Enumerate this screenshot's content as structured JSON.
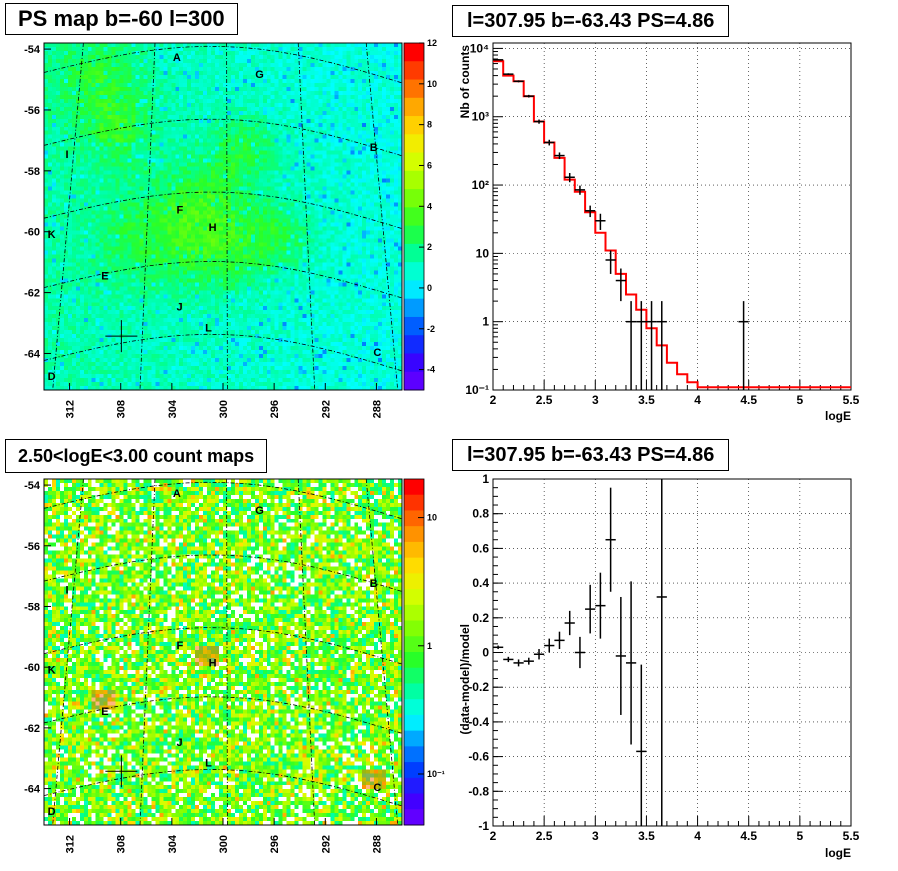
{
  "panels": {
    "ps_map": {
      "title": "PS map b=-60 l=300",
      "y_ticks": [
        "-54",
        "-56",
        "-58",
        "-60",
        "-62",
        "-64"
      ],
      "x_ticks": [
        "312",
        "308",
        "304",
        "300",
        "296",
        "292",
        "288"
      ],
      "colorbar_ticks": [
        "12",
        "10",
        "8",
        "6",
        "4",
        "2",
        "0",
        "-2",
        "-4"
      ],
      "labels": [
        "A",
        "G",
        "B",
        "I",
        "F",
        "H",
        "K",
        "E",
        "J",
        "L",
        "C",
        "D"
      ]
    },
    "count_map": {
      "title": "2.50<logE<3.00 count maps",
      "y_ticks": [
        "-54",
        "-56",
        "-58",
        "-60",
        "-62",
        "-64"
      ],
      "x_ticks": [
        "312",
        "308",
        "304",
        "300",
        "296",
        "292",
        "288"
      ],
      "colorbar_ticks": [
        "10",
        "1",
        "10⁻¹"
      ],
      "labels": [
        "A",
        "G",
        "B",
        "I",
        "F",
        "H",
        "K",
        "E",
        "J",
        "L",
        "C",
        "D"
      ]
    },
    "spectrum": {
      "title": "l=307.95 b=-63.43 PS=4.86",
      "ylabel": "Nb of counts",
      "xlabel": "logE",
      "x_ticks": [
        "2",
        "2.5",
        "3",
        "3.5",
        "4",
        "4.5",
        "5",
        "5.5"
      ],
      "y_ticks": [
        "10⁻¹",
        "1",
        "10",
        "10²",
        "10³",
        "10⁴"
      ]
    },
    "residual": {
      "title": "l=307.95 b=-63.43 PS=4.86",
      "ylabel": "(data-model)/model",
      "xlabel": "logE",
      "x_ticks": [
        "2",
        "2.5",
        "3",
        "3.5",
        "4",
        "4.5",
        "5",
        "5.5"
      ],
      "y_ticks": [
        "1",
        "0.8",
        "0.6",
        "0.4",
        "0.2",
        "0",
        "-0.2",
        "-0.4",
        "-0.6",
        "-0.8",
        "-1"
      ]
    }
  },
  "colors": {
    "model_line": "#ff0000",
    "data": "#000000",
    "map_bg": "#00ffff"
  },
  "chart_data": [
    {
      "type": "heatmap",
      "title": "PS map b=-60 l=300",
      "xlabel": "",
      "ylabel": "",
      "xlim": [
        314,
        286
      ],
      "ylim": [
        -65.2,
        -53.8
      ],
      "zlim": [
        -5,
        12
      ],
      "source_marker": {
        "l": 307.95,
        "b": -63.43
      },
      "grid": true
    },
    {
      "type": "heatmap",
      "title": "2.50<logE<3.00 count maps",
      "xlabel": "",
      "ylabel": "",
      "xlim": [
        314,
        286
      ],
      "ylim": [
        -65.2,
        -53.8
      ],
      "zlim": [
        0.04,
        20
      ],
      "zscale": "log",
      "source_marker": {
        "l": 307.95,
        "b": -63.43
      },
      "grid": true
    },
    {
      "type": "line",
      "title": "l=307.95 b=-63.43 PS=4.86",
      "xlabel": "logE",
      "ylabel": "Nb of counts",
      "xlim": [
        2,
        5.5
      ],
      "ylim": [
        0.1,
        12000
      ],
      "yscale": "log",
      "grid": true,
      "model_edges": [
        2,
        2.1,
        2.2,
        2.3,
        2.4,
        2.5,
        2.6,
        2.7,
        2.8,
        2.9,
        3,
        3.1,
        3.2,
        3.3,
        3.4,
        3.5,
        3.6,
        3.7,
        3.8,
        3.9,
        4,
        4.1,
        4.2,
        4.3,
        4.4,
        4.5,
        4.6,
        4.7,
        4.8,
        4.9,
        5,
        5.1,
        5.2,
        5.3,
        5.4,
        5.5
      ],
      "model_values": [
        6500,
        4000,
        3300,
        2000,
        850,
        420,
        250,
        120,
        80,
        40,
        20,
        11,
        5,
        2.5,
        1.5,
        0.8,
        0.45,
        0.25,
        0.17,
        0.13,
        0.11,
        0.11,
        0.11,
        0.11,
        0.11,
        0.11,
        0.11,
        0.11,
        0.11,
        0.11,
        0.11,
        0.11,
        0.11,
        0.11,
        0.11
      ],
      "data_points": [
        {
          "x": 2.05,
          "y": 6800,
          "lo": 6650,
          "hi": 6950
        },
        {
          "x": 2.15,
          "y": 4200,
          "lo": 4080,
          "hi": 4320
        },
        {
          "x": 2.25,
          "y": 3300,
          "lo": 3190,
          "hi": 3410
        },
        {
          "x": 2.35,
          "y": 2000,
          "lo": 1910,
          "hi": 2090
        },
        {
          "x": 2.45,
          "y": 850,
          "lo": 790,
          "hi": 910
        },
        {
          "x": 2.55,
          "y": 420,
          "lo": 380,
          "hi": 460
        },
        {
          "x": 2.65,
          "y": 270,
          "lo": 240,
          "hi": 300
        },
        {
          "x": 2.75,
          "y": 130,
          "lo": 110,
          "hi": 150
        },
        {
          "x": 2.85,
          "y": 85,
          "lo": 72,
          "hi": 98
        },
        {
          "x": 2.95,
          "y": 42,
          "lo": 34,
          "hi": 50
        },
        {
          "x": 3.05,
          "y": 30,
          "lo": 22,
          "hi": 38
        },
        {
          "x": 3.15,
          "y": 8,
          "lo": 5,
          "hi": 11
        },
        {
          "x": 3.25,
          "y": 4,
          "lo": 2,
          "hi": 6
        },
        {
          "x": 3.35,
          "y": 1,
          "lo": 0.1,
          "hi": 2
        },
        {
          "x": 3.45,
          "y": 1,
          "lo": 0.1,
          "hi": 2
        },
        {
          "x": 3.55,
          "y": 1,
          "lo": 0.1,
          "hi": 2
        },
        {
          "x": 3.65,
          "y": 1,
          "lo": 0.1,
          "hi": 2
        },
        {
          "x": 4.45,
          "y": 1,
          "lo": 0.1,
          "hi": 2
        }
      ]
    },
    {
      "type": "scatter",
      "title": "l=307.95 b=-63.43 PS=4.86",
      "xlabel": "logE",
      "ylabel": "(data-model)/model",
      "xlim": [
        2,
        5.5
      ],
      "ylim": [
        -1,
        1
      ],
      "grid": true,
      "data_points": [
        {
          "x": 2.05,
          "y": 0.03,
          "err": 0.01
        },
        {
          "x": 2.15,
          "y": -0.04,
          "err": 0.015
        },
        {
          "x": 2.25,
          "y": -0.06,
          "err": 0.02
        },
        {
          "x": 2.35,
          "y": -0.05,
          "err": 0.02
        },
        {
          "x": 2.45,
          "y": -0.01,
          "err": 0.03
        },
        {
          "x": 2.55,
          "y": 0.04,
          "err": 0.04
        },
        {
          "x": 2.65,
          "y": 0.07,
          "err": 0.05
        },
        {
          "x": 2.75,
          "y": 0.17,
          "err": 0.07
        },
        {
          "x": 2.85,
          "y": 0.0,
          "err": 0.09
        },
        {
          "x": 2.95,
          "y": 0.25,
          "err": 0.14
        },
        {
          "x": 3.05,
          "y": 0.27,
          "err": 0.19
        },
        {
          "x": 3.15,
          "y": 0.65,
          "err": 0.3
        },
        {
          "x": 3.25,
          "y": -0.02,
          "err": 0.34
        },
        {
          "x": 3.35,
          "y": -0.06,
          "err": 0.47
        },
        {
          "x": 3.45,
          "y": -0.57,
          "err": 0.5
        },
        {
          "x": 3.65,
          "y": 0.32,
          "err": 1.4
        }
      ]
    }
  ]
}
